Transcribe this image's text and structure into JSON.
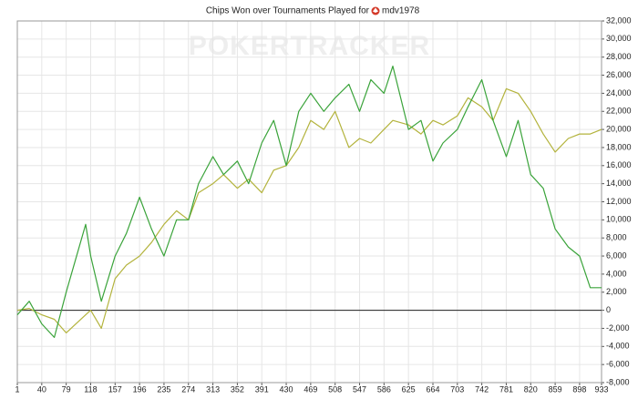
{
  "chart_data": {
    "type": "line",
    "title": "Chips Won over Tournaments Played for",
    "player": "mdv1978",
    "watermark": "POKERTRACKER",
    "x": [
      1,
      20,
      40,
      60,
      79,
      110,
      118,
      135,
      157,
      175,
      196,
      215,
      235,
      255,
      274,
      290,
      313,
      330,
      352,
      370,
      391,
      410,
      430,
      450,
      469,
      490,
      508,
      530,
      547,
      565,
      586,
      600,
      625,
      645,
      664,
      680,
      703,
      720,
      742,
      760,
      781,
      800,
      820,
      840,
      859,
      880,
      898,
      915,
      933
    ],
    "series": [
      {
        "color": "#3aa33a",
        "values": [
          -500,
          1000,
          -1500,
          -3000,
          2000,
          9500,
          6000,
          1000,
          6000,
          8500,
          12500,
          9000,
          6000,
          10000,
          10000,
          14000,
          17000,
          15000,
          16500,
          14000,
          18500,
          21000,
          16000,
          22000,
          24000,
          22000,
          23500,
          25000,
          22000,
          25500,
          24000,
          27000,
          20000,
          21000,
          16500,
          18500,
          20000,
          22500,
          25500,
          21000,
          17000,
          21000,
          15000,
          13500,
          9000,
          7000,
          6000,
          2500,
          2500
        ]
      },
      {
        "color": "#b3b33c",
        "values": [
          0,
          200,
          -500,
          -1000,
          -2500,
          -500,
          0,
          -2000,
          3500,
          5000,
          6000,
          7500,
          9500,
          11000,
          10000,
          13000,
          14000,
          15000,
          13500,
          14500,
          13000,
          15500,
          16000,
          18000,
          21000,
          20000,
          22000,
          18000,
          19000,
          18500,
          20000,
          21000,
          20500,
          19500,
          21000,
          20500,
          21500,
          23500,
          22500,
          21000,
          24500,
          24000,
          22000,
          19500,
          17500,
          19000,
          19500,
          19500,
          20000
        ]
      }
    ],
    "xlim": [
      1,
      933
    ],
    "xticks": [
      1,
      40,
      79,
      118,
      157,
      196,
      235,
      274,
      313,
      352,
      391,
      430,
      469,
      508,
      547,
      586,
      625,
      664,
      703,
      742,
      781,
      820,
      859,
      898,
      933
    ],
    "ylim": [
      -8000,
      32000
    ],
    "yticks": [
      {
        "value": -8000,
        "label": "-8,000"
      },
      {
        "value": -6000,
        "label": "-6,000"
      },
      {
        "value": -4000,
        "label": "-4,000"
      },
      {
        "value": -2000,
        "label": "-2,000"
      },
      0,
      {
        "value": 2000,
        "label": "2,000"
      },
      {
        "value": 4000,
        "label": "4,000"
      },
      {
        "value": 6000,
        "label": "6,000"
      },
      {
        "value": 8000,
        "label": "8,000"
      },
      {
        "value": 10000,
        "label": "10,000"
      },
      {
        "value": 12000,
        "label": "12,000"
      },
      {
        "value": 14000,
        "label": "14,000"
      },
      {
        "value": 16000,
        "label": "16,000"
      },
      {
        "value": 18000,
        "label": "18,000"
      },
      {
        "value": 20000,
        "label": "20,000"
      },
      {
        "value": 22000,
        "label": "22,000"
      },
      {
        "value": 24000,
        "label": "24,000"
      },
      {
        "value": 26000,
        "label": "26,000"
      },
      {
        "value": 28000,
        "label": "28,000"
      },
      {
        "value": 30000,
        "label": "30,000"
      },
      {
        "value": 32000,
        "label": "32,000"
      }
    ],
    "grid": true
  }
}
